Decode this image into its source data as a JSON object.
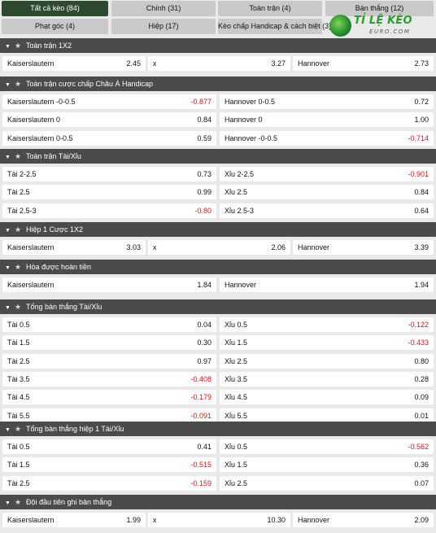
{
  "tabs": [
    {
      "label": "Tất cả kèo (84)",
      "active": true
    },
    {
      "label": "Chính (31)"
    },
    {
      "label": "Toàn trận (4)"
    },
    {
      "label": "Bàn thắng (12)"
    },
    {
      "label": "Phạt góc (4)"
    },
    {
      "label": "Hiệp (17)"
    },
    {
      "label": "Kèo chấp Handicap & cách biệt (3)"
    }
  ],
  "logo": {
    "text": "TỈ LỆ KÈO",
    "subtext": "EURO.COM"
  },
  "sections": [
    {
      "title": "Toàn trận 1X2",
      "rows": [
        [
          {
            "label": "Kaiserslautern",
            "value": "2.45"
          },
          {
            "label": "x",
            "value": "3.27"
          },
          {
            "label": "Hannover",
            "value": "2.73"
          }
        ]
      ]
    },
    {
      "title": "Toàn trận cược chấp Châu Á Handicap",
      "rows": [
        [
          {
            "label": "Kaiserslautern -0-0.5",
            "value": "-0.877"
          },
          {
            "label": "Hannover 0-0.5",
            "value": "0.72"
          }
        ],
        [
          {
            "label": "Kaiserslautern 0",
            "value": "0.84"
          },
          {
            "label": "Hannover 0",
            "value": "1.00"
          }
        ],
        [
          {
            "label": "Kaiserslautern 0-0.5",
            "value": "0.59"
          },
          {
            "label": "Hannover -0-0.5",
            "value": "-0.714"
          }
        ]
      ]
    },
    {
      "title": "Toàn trận Tài/Xỉu",
      "rows": [
        [
          {
            "label": "Tài 2-2.5",
            "value": "0.73"
          },
          {
            "label": "Xỉu 2-2.5",
            "value": "-0.901"
          }
        ],
        [
          {
            "label": "Tài 2.5",
            "value": "0.99"
          },
          {
            "label": "Xỉu 2.5",
            "value": "0.84"
          }
        ],
        [
          {
            "label": "Tài 2.5-3",
            "value": "-0.80"
          },
          {
            "label": "Xỉu 2.5-3",
            "value": "0.64"
          }
        ]
      ]
    },
    {
      "title": "Hiệp 1 Cược 1X2",
      "rows": [
        [
          {
            "label": "Kaiserslautern",
            "value": "3.03"
          },
          {
            "label": "x",
            "value": "2.06"
          },
          {
            "label": "Hannover",
            "value": "3.39"
          }
        ]
      ]
    },
    {
      "title": "Hòa được hoàn tiền",
      "rows": [
        [
          {
            "label": "Kaiserslautern",
            "value": "1.84"
          },
          {
            "label": "Hannover",
            "value": "1.94"
          }
        ]
      ]
    },
    {
      "title": "Tổng bàn thắng Tài/Xỉu",
      "rows": [
        [
          {
            "label": "Tài 0.5",
            "value": "0.04"
          },
          {
            "label": "Xỉu 0.5",
            "value": "-0.122"
          }
        ],
        [
          {
            "label": "Tài 1.5",
            "value": "0.30"
          },
          {
            "label": "Xỉu 1.5",
            "value": "-0.433"
          }
        ],
        [
          {
            "label": "Tài 2.5",
            "value": "0.97"
          },
          {
            "label": "Xỉu 2.5",
            "value": "0.80"
          }
        ],
        [
          {
            "label": "Tài 3.5",
            "value": "-0.408"
          },
          {
            "label": "Xỉu 3.5",
            "value": "0.28"
          }
        ],
        [
          {
            "label": "Tài 4.5",
            "value": "-0.179"
          },
          {
            "label": "Xỉu 4.5",
            "value": "0.09"
          }
        ],
        [
          {
            "label": "Tài 5.5",
            "value": "-0.091"
          },
          {
            "label": "Xỉu 5.5",
            "value": "0.01"
          }
        ]
      ]
    },
    {
      "title": "Tổng bàn thắng hiệp 1 Tài/Xỉu",
      "rows": [
        [
          {
            "label": "Tài 0.5",
            "value": "0.41"
          },
          {
            "label": "Xỉu 0.5",
            "value": "-0.562"
          }
        ],
        [
          {
            "label": "Tài 1.5",
            "value": "-0.515"
          },
          {
            "label": "Xỉu 1.5",
            "value": "0.36"
          }
        ],
        [
          {
            "label": "Tài 2.5",
            "value": "-0.159"
          },
          {
            "label": "Xỉu 2.5",
            "value": "0.07"
          }
        ]
      ]
    },
    {
      "title": "Đội đầu tiên ghi bàn thắng",
      "rows": [
        [
          {
            "label": "Kaiserslautern",
            "value": "1.99"
          },
          {
            "label": "x",
            "value": "10.30"
          },
          {
            "label": "Hannover",
            "value": "2.09"
          }
        ]
      ]
    }
  ],
  "colors": {
    "negative": "#e0141e",
    "header_bg": "#4b4b4b",
    "active_tab": "#2d4a2e"
  }
}
